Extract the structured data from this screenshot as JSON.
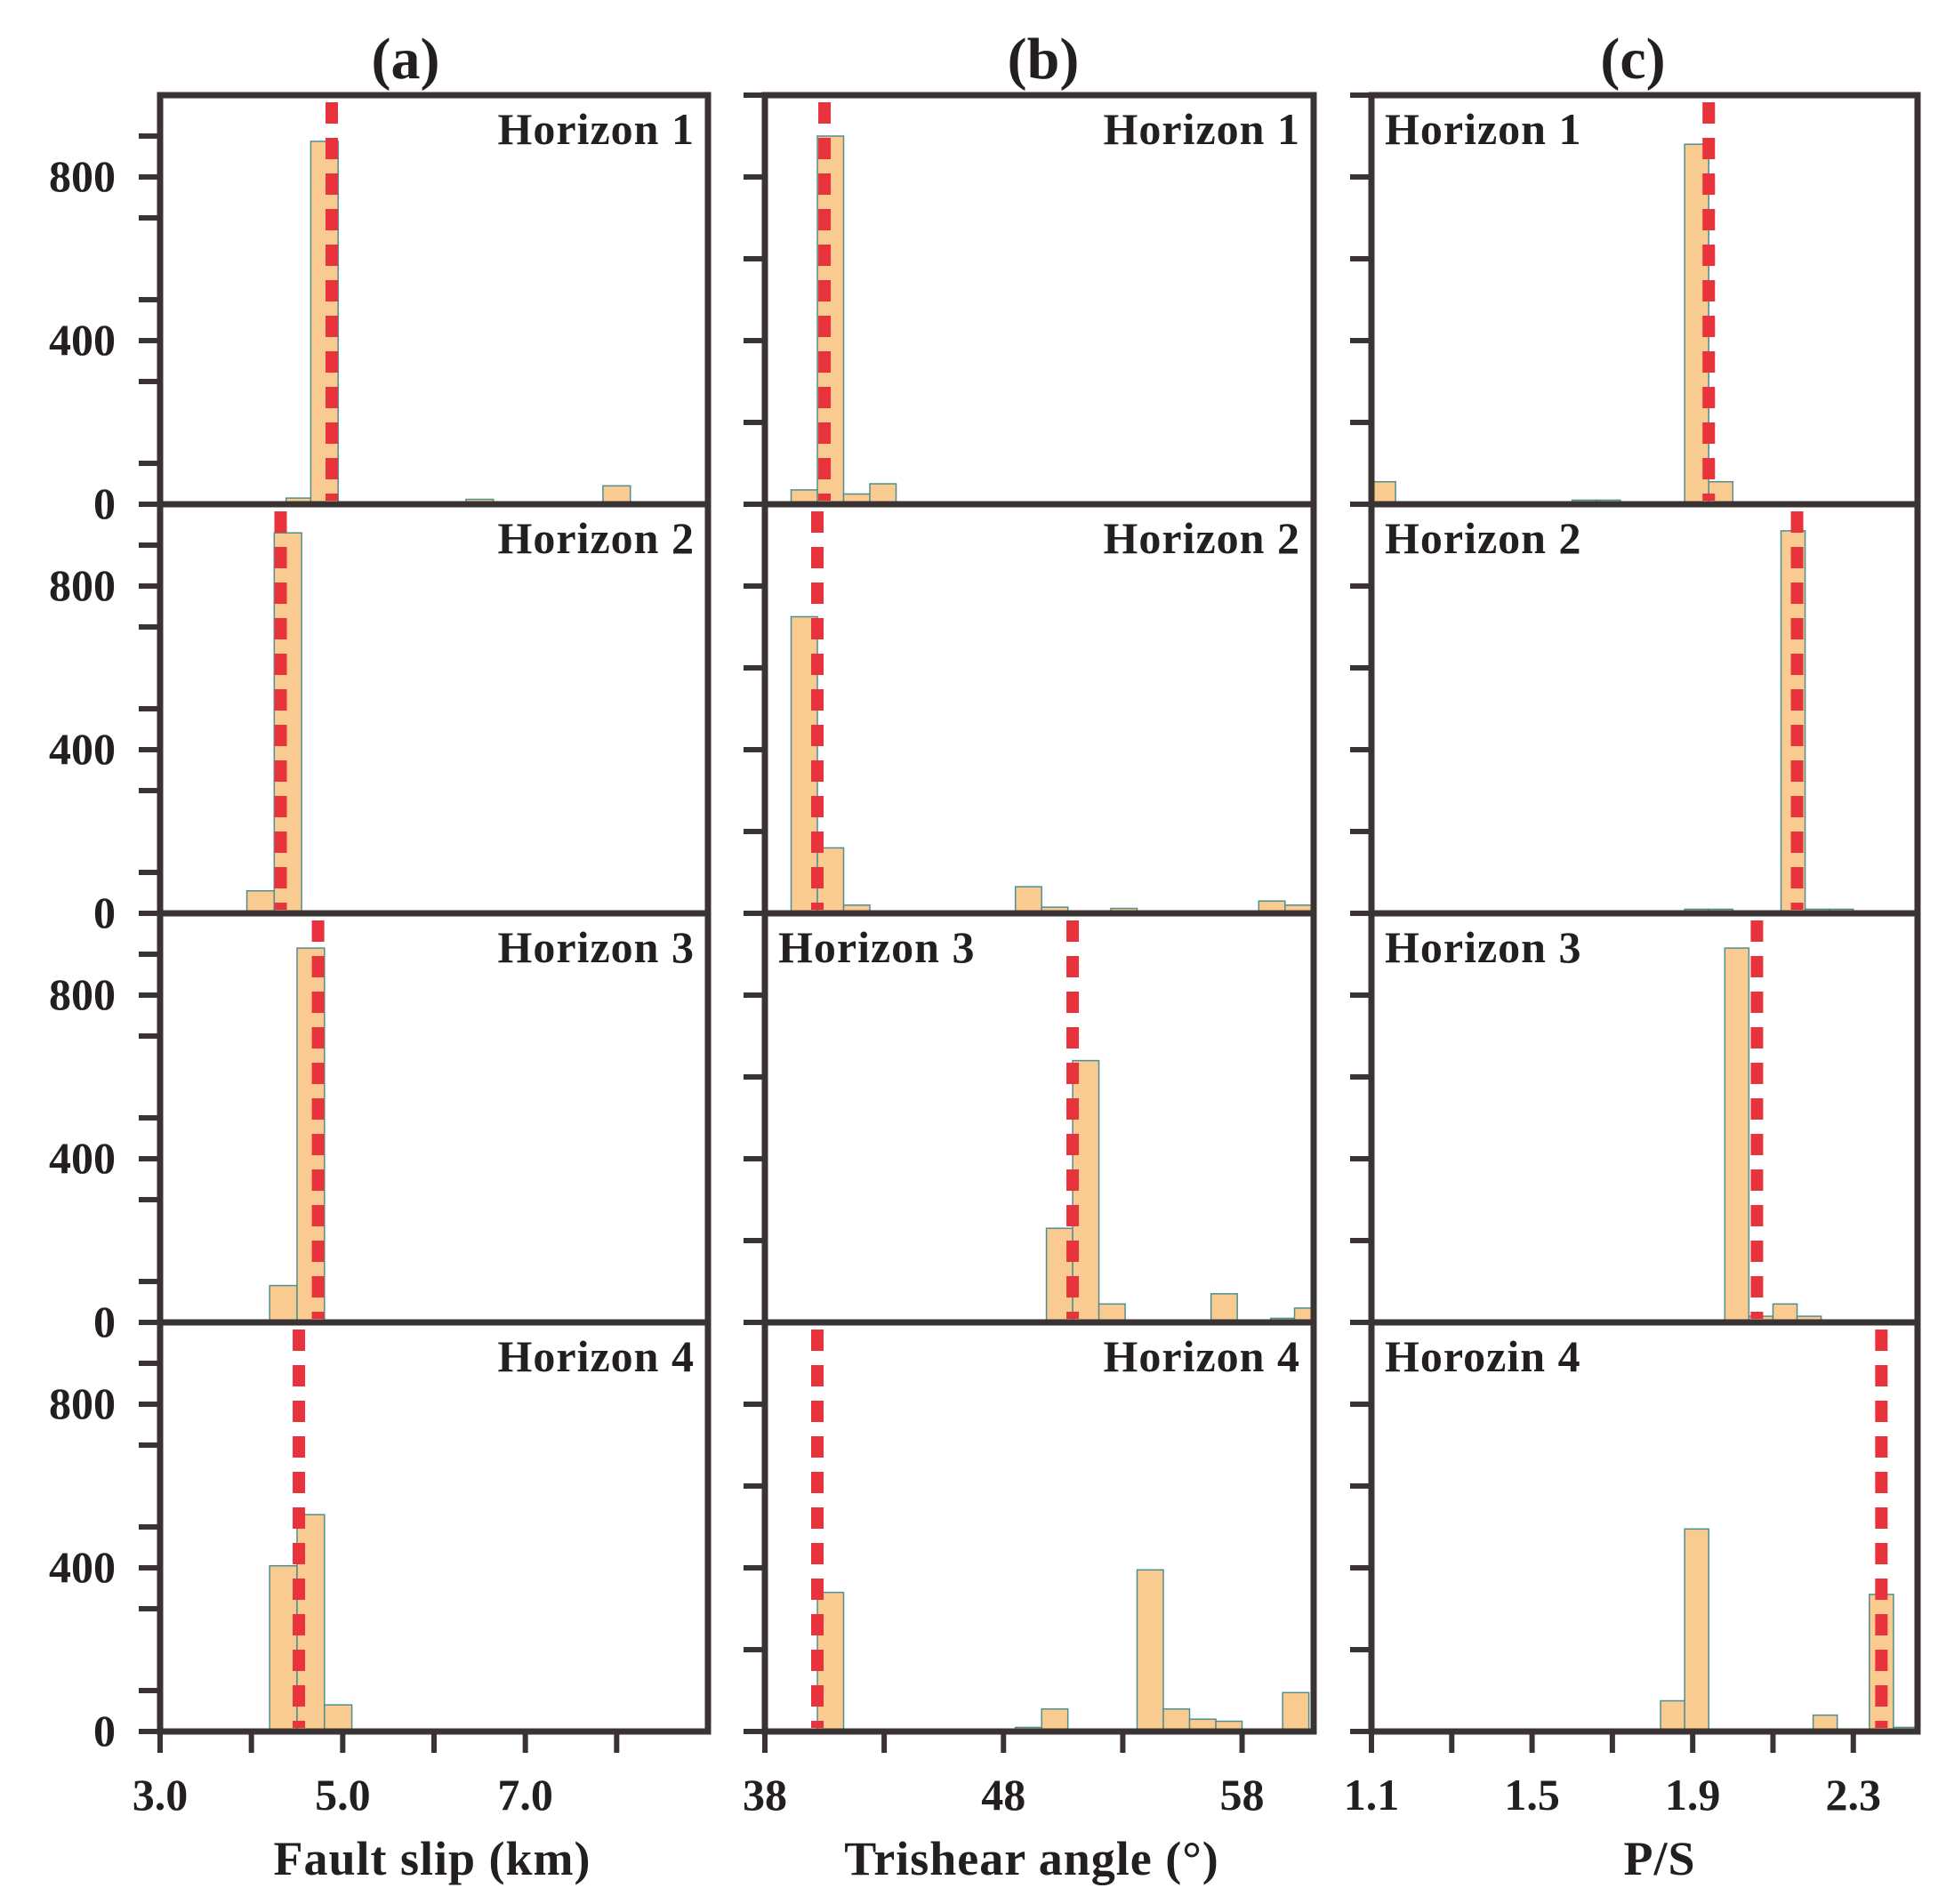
{
  "chart_data": [
    {
      "type": "bar",
      "title": "(a)",
      "xlabel": "Fault slip (km)",
      "ylabel": "",
      "xlim": [
        3.0,
        9.0
      ],
      "ylim": [
        0,
        1000
      ],
      "x_ticks": [
        "3.0",
        "5.0",
        "7.0"
      ],
      "x_tick_values": [
        3.0,
        5.0,
        7.0
      ],
      "minor_x_ticks": [
        4,
        6,
        8
      ],
      "y_ticks": [
        "0",
        "400",
        "800"
      ],
      "y_tick_values": [
        0,
        400,
        800
      ],
      "panels": [
        {
          "label": "Horizon 1",
          "ref_line": 4.88,
          "bars": [
            {
              "x0": 4.38,
              "x1": 4.65,
              "value": 15
            },
            {
              "x0": 4.65,
              "x1": 4.95,
              "value": 887
            },
            {
              "x0": 6.35,
              "x1": 6.65,
              "value": 12
            },
            {
              "x0": 7.85,
              "x1": 8.15,
              "value": 45
            }
          ]
        },
        {
          "label": "Horizon 2",
          "ref_line": 4.32,
          "bars": [
            {
              "x0": 3.95,
              "x1": 4.25,
              "value": 55
            },
            {
              "x0": 4.25,
              "x1": 4.55,
              "value": 930
            }
          ]
        },
        {
          "label": "Horizon 3",
          "ref_line": 4.73,
          "bars": [
            {
              "x0": 4.2,
              "x1": 4.5,
              "value": 90
            },
            {
              "x0": 4.5,
              "x1": 4.8,
              "value": 915
            }
          ]
        },
        {
          "label": "Horizon 4",
          "ref_line": 4.52,
          "bars": [
            {
              "x0": 4.2,
              "x1": 4.5,
              "value": 405
            },
            {
              "x0": 4.5,
              "x1": 4.8,
              "value": 530
            },
            {
              "x0": 4.8,
              "x1": 5.1,
              "value": 65
            }
          ]
        }
      ]
    },
    {
      "type": "bar",
      "title": "(b)",
      "xlabel": "Trishear angle (°)",
      "ylabel": "",
      "xlim": [
        38,
        61
      ],
      "ylim": [
        0,
        1000
      ],
      "x_ticks": [
        "38",
        "48",
        "58"
      ],
      "x_tick_values": [
        38,
        48,
        58
      ],
      "minor_x_ticks": [
        43,
        53
      ],
      "y_ticks": [],
      "y_tick_values": [
        0,
        200,
        400,
        600,
        800,
        1000
      ],
      "panels": [
        {
          "label": "Horizon 1",
          "ref_line": 40.5,
          "bars": [
            {
              "x0": 39.1,
              "x1": 40.2,
              "value": 35
            },
            {
              "x0": 40.2,
              "x1": 41.3,
              "value": 900
            },
            {
              "x0": 41.3,
              "x1": 42.4,
              "value": 25
            },
            {
              "x0": 42.4,
              "x1": 43.5,
              "value": 50
            }
          ]
        },
        {
          "label": "Horizon 2",
          "ref_line": 40.2,
          "bars": [
            {
              "x0": 39.1,
              "x1": 40.2,
              "value": 725
            },
            {
              "x0": 40.2,
              "x1": 41.3,
              "value": 160
            },
            {
              "x0": 41.3,
              "x1": 42.4,
              "value": 20
            },
            {
              "x0": 42.4,
              "x1": 43.5,
              "value": 5
            },
            {
              "x0": 43.5,
              "x1": 48.5,
              "value": 5
            },
            {
              "x0": 48.5,
              "x1": 49.6,
              "value": 65
            },
            {
              "x0": 49.6,
              "x1": 50.7,
              "value": 15
            },
            {
              "x0": 52.5,
              "x1": 53.6,
              "value": 12
            },
            {
              "x0": 58.7,
              "x1": 59.8,
              "value": 30
            },
            {
              "x0": 59.8,
              "x1": 61.0,
              "value": 20
            }
          ]
        },
        {
          "label": "Horizon 3",
          "ref_line": 50.9,
          "bars": [
            {
              "x0": 49.8,
              "x1": 50.9,
              "value": 230
            },
            {
              "x0": 50.9,
              "x1": 52.0,
              "value": 640
            },
            {
              "x0": 52.0,
              "x1": 53.1,
              "value": 45
            },
            {
              "x0": 56.7,
              "x1": 57.8,
              "value": 70
            },
            {
              "x0": 59.2,
              "x1": 60.2,
              "value": 10
            },
            {
              "x0": 60.2,
              "x1": 61.0,
              "value": 35
            }
          ]
        },
        {
          "label": "Horizon 4",
          "ref_line": 40.2,
          "bars": [
            {
              "x0": 40.2,
              "x1": 41.3,
              "value": 340
            },
            {
              "x0": 43.5,
              "x1": 47.5,
              "value": 5
            },
            {
              "x0": 48.5,
              "x1": 49.6,
              "value": 10
            },
            {
              "x0": 49.6,
              "x1": 50.7,
              "value": 55
            },
            {
              "x0": 53.6,
              "x1": 54.7,
              "value": 395
            },
            {
              "x0": 54.7,
              "x1": 55.8,
              "value": 55
            },
            {
              "x0": 55.8,
              "x1": 56.9,
              "value": 30
            },
            {
              "x0": 56.9,
              "x1": 58.0,
              "value": 25
            },
            {
              "x0": 59.7,
              "x1": 60.8,
              "value": 95
            }
          ]
        }
      ]
    },
    {
      "type": "bar",
      "title": "(c)",
      "xlabel": "P/S",
      "ylabel": "",
      "xlim": [
        1.1,
        2.46
      ],
      "ylim": [
        0,
        1000
      ],
      "x_ticks": [
        "1.1",
        "1.5",
        "1.9",
        "2.3"
      ],
      "x_tick_values": [
        1.1,
        1.5,
        1.9,
        2.3
      ],
      "minor_x_ticks": [
        1.3,
        1.7,
        2.1
      ],
      "y_ticks": [],
      "y_tick_values": [
        0,
        200,
        400,
        600,
        800,
        1000
      ],
      "panels": [
        {
          "label": "Horizon 1",
          "ref_line": 1.94,
          "bars": [
            {
              "x0": 1.1,
              "x1": 1.16,
              "value": 55
            },
            {
              "x0": 1.6,
              "x1": 1.66,
              "value": 10
            },
            {
              "x0": 1.66,
              "x1": 1.72,
              "value": 10
            },
            {
              "x0": 1.88,
              "x1": 1.94,
              "value": 880
            },
            {
              "x0": 1.94,
              "x1": 2.0,
              "value": 55
            }
          ]
        },
        {
          "label": "Horizon 2",
          "ref_line": 2.16,
          "bars": [
            {
              "x0": 1.1,
              "x1": 1.88,
              "value": 3
            },
            {
              "x0": 1.88,
              "x1": 1.94,
              "value": 10
            },
            {
              "x0": 1.94,
              "x1": 2.0,
              "value": 10
            },
            {
              "x0": 2.0,
              "x1": 2.06,
              "value": 5
            },
            {
              "x0": 2.06,
              "x1": 2.12,
              "value": 5
            },
            {
              "x0": 2.12,
              "x1": 2.18,
              "value": 935
            },
            {
              "x0": 2.18,
              "x1": 2.24,
              "value": 10
            },
            {
              "x0": 2.24,
              "x1": 2.3,
              "value": 10
            },
            {
              "x0": 2.3,
              "x1": 2.36,
              "value": 5
            },
            {
              "x0": 2.36,
              "x1": 2.46,
              "value": 3
            }
          ]
        },
        {
          "label": "Horizon 3",
          "ref_line": 2.06,
          "bars": [
            {
              "x0": 1.98,
              "x1": 2.04,
              "value": 915
            },
            {
              "x0": 2.04,
              "x1": 2.1,
              "value": 15
            },
            {
              "x0": 2.1,
              "x1": 2.16,
              "value": 45
            },
            {
              "x0": 2.16,
              "x1": 2.22,
              "value": 15
            }
          ]
        },
        {
          "label": "Horozin 4",
          "ref_line": 2.37,
          "bars": [
            {
              "x0": 1.82,
              "x1": 1.88,
              "value": 75
            },
            {
              "x0": 1.88,
              "x1": 1.94,
              "value": 495
            },
            {
              "x0": 1.94,
              "x1": 2.0,
              "value": 5
            },
            {
              "x0": 2.2,
              "x1": 2.26,
              "value": 40
            },
            {
              "x0": 2.34,
              "x1": 2.4,
              "value": 335
            },
            {
              "x0": 2.4,
              "x1": 2.46,
              "value": 10
            }
          ]
        }
      ]
    }
  ]
}
